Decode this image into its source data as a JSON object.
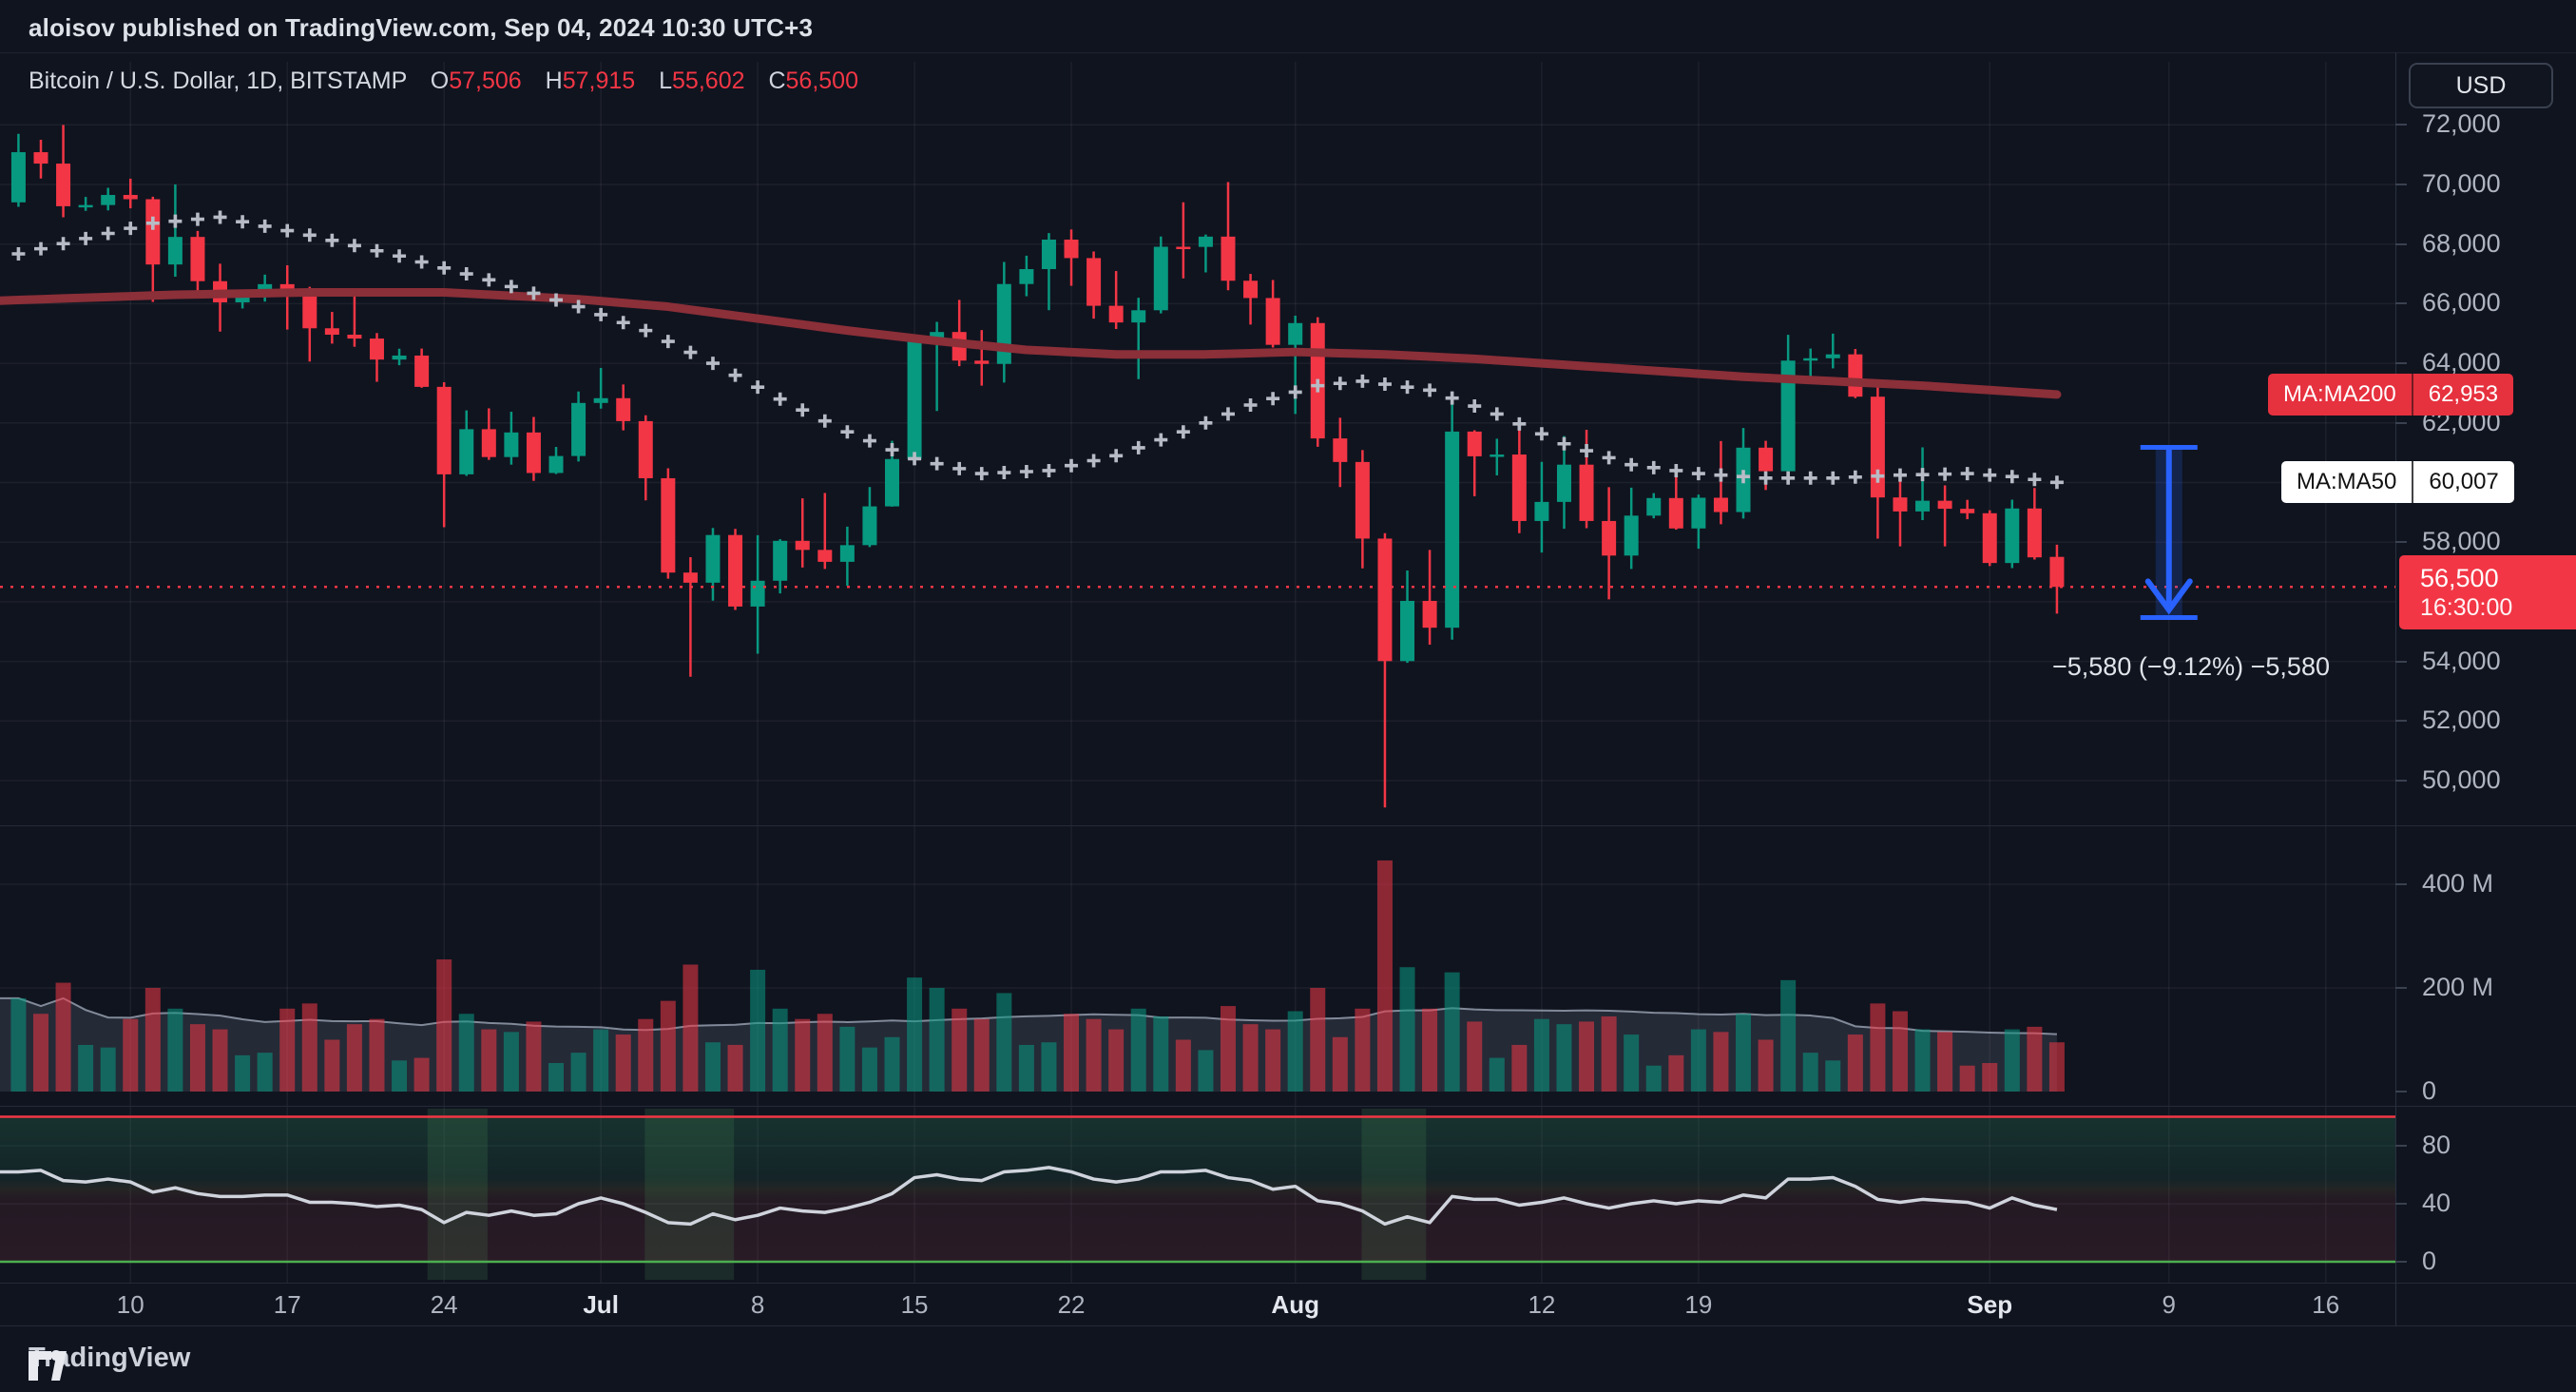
{
  "header": {
    "publisher_line": "aloisov published on TradingView.com, Sep 04, 2024 10:30 UTC+3"
  },
  "title_bar": {
    "symbol_title": "Bitcoin / U.S. Dollar, 1D, BITSTAMP",
    "ohlc": {
      "open_label": "O",
      "open": "57,506",
      "high_label": "H",
      "high": "57,915",
      "low_label": "L",
      "low": "55,602",
      "close_label": "C",
      "close": "56,500"
    }
  },
  "currency_button": "USD",
  "indicators": {
    "ma200": {
      "label": "MA:MA200",
      "value": "62,953"
    },
    "ma50": {
      "label": "MA:MA50",
      "value": "60,007"
    }
  },
  "price_axis": {
    "labels": [
      {
        "label": "72,000",
        "value": 72000
      },
      {
        "label": "70,000",
        "value": 70000
      },
      {
        "label": "68,000",
        "value": 68000
      },
      {
        "label": "66,000",
        "value": 66000
      },
      {
        "label": "64,000",
        "value": 64000
      },
      {
        "label": "62,000",
        "value": 62000
      },
      {
        "label": "58,000",
        "value": 58000
      },
      {
        "label": "54,000",
        "value": 54000
      },
      {
        "label": "52,000",
        "value": 52000
      },
      {
        "label": "50,000",
        "value": 50000
      }
    ],
    "grid_values": [
      50000,
      52000,
      54000,
      56000,
      58000,
      60000,
      62000,
      64000,
      66000,
      68000,
      70000,
      72000
    ],
    "last_price": "56,500",
    "countdown": "16:30:00"
  },
  "volume_axis": {
    "labels": [
      {
        "label": "400 M",
        "value": 400
      },
      {
        "label": "200 M",
        "value": 200
      },
      {
        "label": "0",
        "value": 0
      }
    ],
    "grid_values": [
      200,
      400
    ]
  },
  "oscillator_axis": {
    "labels": [
      {
        "label": "80",
        "value": 80
      },
      {
        "label": "40",
        "value": 40
      },
      {
        "label": "0",
        "value": 0
      }
    ],
    "grid_values": [
      40,
      80
    ]
  },
  "x_axis": {
    "ticks": [
      {
        "i": 5,
        "label": "10"
      },
      {
        "i": 12,
        "label": "17"
      },
      {
        "i": 19,
        "label": "24"
      },
      {
        "i": 26,
        "label": "Jul",
        "major": true
      },
      {
        "i": 33,
        "label": "8"
      },
      {
        "i": 40,
        "label": "15"
      },
      {
        "i": 47,
        "label": "22"
      },
      {
        "i": 57,
        "label": "Aug",
        "major": true
      },
      {
        "i": 68,
        "label": "12"
      },
      {
        "i": 75,
        "label": "19"
      },
      {
        "i": 88,
        "label": "Sep",
        "major": true
      },
      {
        "i": 96,
        "label": "9"
      },
      {
        "i": 103,
        "label": "16"
      }
    ]
  },
  "measurement": {
    "text": "−5,580 (−9.12%) −5,580",
    "from": 61180,
    "to": 55600,
    "index": 96
  },
  "footer": {
    "brand": "TradingView"
  },
  "colors": {
    "up": "#089981",
    "down": "#f23645",
    "ma200": "#8b2f38",
    "ma50_dots": "#b7bbc5",
    "price_line": "#f23645",
    "arrow_blue": "#2962ff",
    "osc_line": "#cfd3dc",
    "osc_top_line": "#f23645",
    "osc_bottom_line": "#4caf50",
    "grid": "rgba(255,255,255,0.055)",
    "vol_ma_fill": "rgba(150,160,180,0.16)",
    "vol_ma_stroke": "rgba(185,195,212,0.65)"
  },
  "chart_data": {
    "type": "candlestick+volume+oscillator",
    "title": "Bitcoin / U.S. Dollar, 1D, BITSTAMP",
    "ylim_price": [
      48600,
      72680
    ],
    "ylim_volume_m": [
      0,
      470
    ],
    "ylim_oscillator": [
      0,
      100
    ],
    "price_line_level": 56500,
    "candles": [
      [
        69400,
        71700,
        69250,
        71083
      ],
      [
        71083,
        71500,
        70200,
        70700
      ],
      [
        70700,
        71997,
        68900,
        69270
      ],
      [
        69270,
        69582,
        69115,
        69310
      ],
      [
        69310,
        69888,
        69130,
        69648
      ],
      [
        69648,
        70195,
        69200,
        69505
      ],
      [
        69505,
        69590,
        66060,
        67315
      ],
      [
        67315,
        69999,
        66905,
        68240
      ],
      [
        68240,
        68440,
        66255,
        66755
      ],
      [
        66755,
        67340,
        65065,
        66045
      ],
      [
        66045,
        66440,
        65840,
        66220
      ],
      [
        66220,
        66975,
        66070,
        66655
      ],
      [
        66655,
        67290,
        65130,
        66505
      ],
      [
        66505,
        66565,
        64060,
        65175
      ],
      [
        65175,
        65725,
        64660,
        64960
      ],
      [
        64960,
        66480,
        64555,
        64830
      ],
      [
        64830,
        65015,
        63380,
        64125
      ],
      [
        64125,
        64490,
        63935,
        64260
      ],
      [
        64260,
        64495,
        63180,
        63210
      ],
      [
        63210,
        63365,
        58500,
        60275
      ],
      [
        60275,
        62420,
        60225,
        61790
      ],
      [
        61790,
        62490,
        60760,
        60855
      ],
      [
        60855,
        62375,
        60600,
        61680
      ],
      [
        61680,
        62200,
        60055,
        60320
      ],
      [
        60320,
        61195,
        60285,
        60890
      ],
      [
        60890,
        63055,
        60705,
        62670
      ],
      [
        62670,
        63845,
        62480,
        62830
      ],
      [
        62830,
        63290,
        61750,
        62060
      ],
      [
        62060,
        62255,
        59400,
        60145
      ],
      [
        60145,
        60480,
        56775,
        56980
      ],
      [
        56980,
        57495,
        53485,
        56640
      ],
      [
        56640,
        58475,
        56035,
        58240
      ],
      [
        58240,
        58445,
        55725,
        55840
      ],
      [
        55840,
        58235,
        54260,
        56705
      ],
      [
        56705,
        58100,
        56280,
        58045
      ],
      [
        58045,
        59470,
        57150,
        57740
      ],
      [
        57740,
        59650,
        57100,
        57340
      ],
      [
        57340,
        58520,
        56540,
        57900
      ],
      [
        57900,
        59850,
        57835,
        59200
      ],
      [
        59200,
        61400,
        59190,
        60790
      ],
      [
        60790,
        64900,
        60690,
        64720
      ],
      [
        64720,
        65390,
        62400,
        65050
      ],
      [
        65050,
        66130,
        63905,
        64090
      ],
      [
        64090,
        65115,
        63250,
        63980
      ],
      [
        63980,
        67400,
        63355,
        66660
      ],
      [
        66660,
        67610,
        66250,
        67160
      ],
      [
        67160,
        68370,
        65780,
        68150
      ],
      [
        68150,
        68490,
        66600,
        67530
      ],
      [
        67530,
        67750,
        65500,
        65930
      ],
      [
        65930,
        67095,
        65150,
        65370
      ],
      [
        65370,
        66200,
        63470,
        65780
      ],
      [
        65780,
        68255,
        65675,
        67910
      ],
      [
        67910,
        69400,
        66850,
        67905
      ],
      [
        67905,
        68320,
        67050,
        68250
      ],
      [
        68250,
        70080,
        66450,
        66770
      ],
      [
        66770,
        67000,
        65300,
        66190
      ],
      [
        66190,
        66795,
        64530,
        64620
      ],
      [
        64620,
        65600,
        62300,
        65350
      ],
      [
        65350,
        65545,
        61200,
        61480
      ],
      [
        61480,
        62175,
        59850,
        60690
      ],
      [
        60690,
        61090,
        57120,
        58120
      ],
      [
        58120,
        58300,
        49100,
        54010
      ],
      [
        54010,
        57050,
        53950,
        56030
      ],
      [
        56030,
        57740,
        54560,
        55130
      ],
      [
        55130,
        62745,
        54730,
        61710
      ],
      [
        61710,
        61755,
        59540,
        60880
      ],
      [
        60880,
        61470,
        60240,
        60940
      ],
      [
        60940,
        61870,
        58300,
        58710
      ],
      [
        58710,
        60695,
        57650,
        59350
      ],
      [
        59350,
        61560,
        58450,
        60600
      ],
      [
        60600,
        61770,
        58470,
        58710
      ],
      [
        58710,
        59845,
        56080,
        57550
      ],
      [
        57550,
        59830,
        57100,
        58890
      ],
      [
        58890,
        59645,
        58800,
        59480
      ],
      [
        59480,
        60250,
        58420,
        58460
      ],
      [
        58460,
        59595,
        57780,
        59490
      ],
      [
        59490,
        61390,
        58600,
        59010
      ],
      [
        59010,
        61830,
        58790,
        61170
      ],
      [
        61170,
        61400,
        59750,
        60380
      ],
      [
        60380,
        64955,
        60370,
        64090
      ],
      [
        64090,
        64495,
        63570,
        64170
      ],
      [
        64170,
        64995,
        63830,
        64300
      ],
      [
        64300,
        64480,
        62830,
        62880
      ],
      [
        62880,
        63205,
        58120,
        59500
      ],
      [
        59500,
        60230,
        57860,
        59030
      ],
      [
        59030,
        61180,
        58740,
        59390
      ],
      [
        59390,
        59905,
        57860,
        59120
      ],
      [
        59120,
        59420,
        58770,
        58970
      ],
      [
        58970,
        59070,
        57200,
        57300
      ],
      [
        57300,
        59425,
        57130,
        59130
      ],
      [
        59130,
        59815,
        57415,
        57490
      ],
      [
        57506,
        57915,
        55602,
        56500
      ]
    ],
    "volumes_m": [
      180,
      150,
      210,
      90,
      85,
      140,
      200,
      160,
      130,
      120,
      70,
      75,
      160,
      170,
      100,
      130,
      140,
      60,
      65,
      255,
      150,
      120,
      115,
      135,
      55,
      75,
      120,
      110,
      140,
      175,
      245,
      95,
      90,
      235,
      160,
      140,
      150,
      125,
      85,
      105,
      220,
      200,
      160,
      140,
      190,
      90,
      95,
      150,
      140,
      120,
      160,
      145,
      100,
      80,
      165,
      130,
      120,
      155,
      200,
      105,
      160,
      446,
      240,
      160,
      230,
      135,
      65,
      90,
      140,
      130,
      135,
      145,
      110,
      50,
      70,
      120,
      115,
      150,
      100,
      215,
      75,
      60,
      110,
      170,
      155,
      120,
      115,
      50,
      55,
      120,
      125,
      95
    ],
    "oscillator": [
      62,
      63,
      56,
      55,
      57,
      55,
      48,
      51,
      47,
      45,
      45,
      46,
      46,
      41,
      41,
      40,
      38,
      39,
      36,
      27,
      34,
      32,
      35,
      32,
      33,
      40,
      44,
      40,
      34,
      27,
      26,
      33,
      29,
      32,
      37,
      35,
      34,
      37,
      41,
      47,
      58,
      60,
      57,
      56,
      62,
      63,
      65,
      62,
      57,
      55,
      57,
      62,
      62,
      63,
      58,
      56,
      50,
      52,
      42,
      40,
      35,
      26,
      31,
      27,
      45,
      43,
      43,
      39,
      41,
      44,
      40,
      37,
      40,
      42,
      40,
      42,
      41,
      46,
      44,
      57,
      57,
      58,
      52,
      43,
      41,
      43,
      42,
      41,
      37,
      44,
      39,
      36
    ],
    "ma200_keypoints": [
      [
        -1,
        66100
      ],
      [
        7,
        66300
      ],
      [
        13,
        66380
      ],
      [
        19,
        66380
      ],
      [
        25,
        66150
      ],
      [
        29,
        65900
      ],
      [
        33,
        65500
      ],
      [
        37,
        65100
      ],
      [
        41,
        64750
      ],
      [
        45,
        64450
      ],
      [
        49,
        64300
      ],
      [
        53,
        64300
      ],
      [
        57,
        64380
      ],
      [
        61,
        64300
      ],
      [
        65,
        64150
      ],
      [
        69,
        63950
      ],
      [
        73,
        63750
      ],
      [
        77,
        63550
      ],
      [
        81,
        63400
      ],
      [
        85,
        63250
      ],
      [
        91,
        62953
      ]
    ],
    "ma50_keypoints": [
      [
        -1,
        67500
      ],
      [
        6,
        68700
      ],
      [
        9,
        68900
      ],
      [
        13,
        68300
      ],
      [
        17,
        67600
      ],
      [
        21,
        66800
      ],
      [
        25,
        65900
      ],
      [
        28,
        65100
      ],
      [
        31,
        64000
      ],
      [
        34,
        62800
      ],
      [
        37,
        61700
      ],
      [
        40,
        60800
      ],
      [
        43,
        60300
      ],
      [
        46,
        60400
      ],
      [
        49,
        60900
      ],
      [
        52,
        61700
      ],
      [
        55,
        62600
      ],
      [
        58,
        63250
      ],
      [
        60,
        63400
      ],
      [
        63,
        63100
      ],
      [
        66,
        62300
      ],
      [
        69,
        61300
      ],
      [
        72,
        60600
      ],
      [
        75,
        60300
      ],
      [
        78,
        60150
      ],
      [
        81,
        60150
      ],
      [
        84,
        60250
      ],
      [
        87,
        60300
      ],
      [
        89,
        60200
      ],
      [
        91,
        60007
      ]
    ],
    "highlight_ranges": [
      [
        18.6,
        20.6
      ],
      [
        28.3,
        31.6
      ],
      [
        60.3,
        62.5
      ]
    ],
    "oscillator_bands": {
      "top_line": 100,
      "bottom_line": 0
    }
  }
}
